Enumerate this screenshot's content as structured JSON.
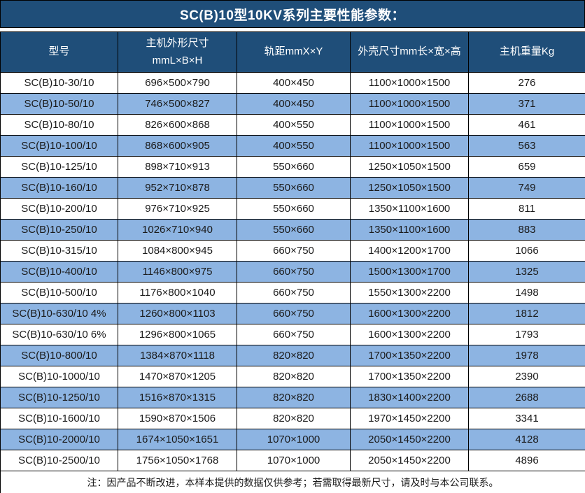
{
  "title": "SC(B)10型10KV系列主要性能参数：",
  "colors": {
    "header_bg": "#1F4E79",
    "stripe_bg": "#8DB4E2",
    "border_color": "#000000",
    "header_text": "#FFFFFF",
    "body_text": "#1A1A1A"
  },
  "table": {
    "headers": [
      [
        "型号"
      ],
      [
        "主机外形尺寸",
        "mmL×B×H"
      ],
      [
        "轨距mmX×Y"
      ],
      [
        "外壳尺寸mm长×宽×高"
      ],
      [
        "主机重量Kg"
      ]
    ],
    "rows": [
      [
        "SC(B)10-30/10",
        "696×500×790",
        "400×450",
        "1100×1000×1500",
        "276"
      ],
      [
        "SC(B)10-50/10",
        "746×500×827",
        "400×450",
        "1100×1000×1500",
        "371"
      ],
      [
        "SC(B)10-80/10",
        "826×600×868",
        "400×550",
        "1100×1000×1500",
        "461"
      ],
      [
        "SC(B)10-100/10",
        "868×600×905",
        "400×550",
        "1100×1000×1500",
        "563"
      ],
      [
        "SC(B)10-125/10",
        "898×710×913",
        "550×660",
        "1250×1050×1500",
        "659"
      ],
      [
        "SC(B)10-160/10",
        "952×710×878",
        "550×660",
        "1250×1050×1500",
        "749"
      ],
      [
        "SC(B)10-200/10",
        "976×710×925",
        "550×660",
        "1350×1100×1600",
        "811"
      ],
      [
        "SC(B)10-250/10",
        "1026×710×940",
        "550×660",
        "1350×1100×1600",
        "883"
      ],
      [
        "SC(B)10-315/10",
        "1084×800×945",
        "660×750",
        "1400×1200×1700",
        "1066"
      ],
      [
        "SC(B)10-400/10",
        "1146×800×975",
        "660×750",
        "1500×1300×1700",
        "1325"
      ],
      [
        "SC(B)10-500/10",
        "1176×800×1040",
        "660×750",
        "1550×1300×2200",
        "1498"
      ],
      [
        "SC(B)10-630/10 4%",
        "1260×800×1103",
        "660×750",
        "1600×1300×2200",
        "1812"
      ],
      [
        "SC(B)10-630/10 6%",
        "1296×800×1065",
        "660×750",
        "1600×1300×2200",
        "1793"
      ],
      [
        "SC(B)10-800/10",
        "1384×870×1118",
        "820×820",
        "1700×1350×2200",
        "1978"
      ],
      [
        "SC(B)10-1000/10",
        "1470×870×1205",
        "820×820",
        "1700×1350×2200",
        "2390"
      ],
      [
        "SC(B)10-1250/10",
        "1516×870×1315",
        "820×820",
        "1830×1400×2200",
        "2688"
      ],
      [
        "SC(B)10-1600/10",
        "1590×870×1506",
        "820×820",
        "1970×1450×2200",
        "3341"
      ],
      [
        "SC(B)10-2000/10",
        "1674×1050×1651",
        "1070×1000",
        "2050×1450×2200",
        "4128"
      ],
      [
        "SC(B)10-2500/10",
        "1756×1050×1768",
        "1070×1000",
        "2050×1450×2200",
        "4896"
      ]
    ]
  },
  "note": "注：因产品不断改进，本样本提供的数据仅供参考；若需取得最新尺寸，请及时与本公司联系。"
}
